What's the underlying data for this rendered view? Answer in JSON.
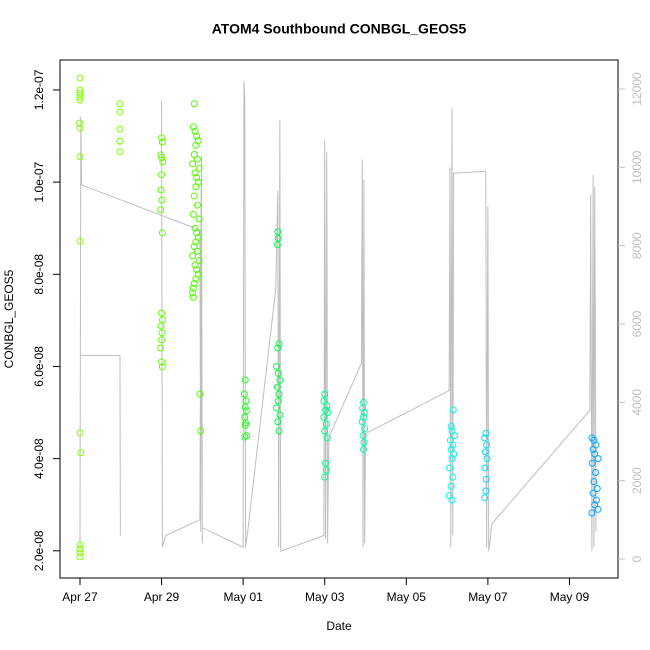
{
  "chart_data": {
    "type": "scatter",
    "title": "ATOM4 Southbound CONBGL_GEOS5",
    "xlabel": "Date",
    "ylabel": "CONBGL_GEOS5",
    "xlim": [
      116.51,
      130.19
    ],
    "xticks": [
      {
        "value": 117,
        "label": "Apr 27"
      },
      {
        "value": 119,
        "label": "Apr 29"
      },
      {
        "value": 121,
        "label": "May 01"
      },
      {
        "value": 123,
        "label": "May 03"
      },
      {
        "value": 125,
        "label": "May 05"
      },
      {
        "value": 127,
        "label": "May 07"
      },
      {
        "value": 129,
        "label": "May 09"
      }
    ],
    "ylim": [
      1.41e-08,
      1.265e-07
    ],
    "yticks": [
      {
        "value": 2e-08,
        "label": "2.0e-08"
      },
      {
        "value": 4e-08,
        "label": "4.0e-08"
      },
      {
        "value": 6e-08,
        "label": "6.0e-08"
      },
      {
        "value": 8e-08,
        "label": "8.0e-08"
      },
      {
        "value": 1e-07,
        "label": "1.0e-07"
      },
      {
        "value": 1.2e-07,
        "label": "1.2e-07"
      }
    ],
    "y2lim": [
      -485,
      12740
    ],
    "y2ticks": [
      0,
      2000,
      4000,
      6000,
      8000,
      10000,
      12000
    ],
    "series": [
      {
        "color": "#7fff00",
        "x": [
          117.0,
          117.0,
          117.0,
          117.0,
          117.0,
          116.99,
          117.0,
          117.0,
          117.0,
          117.0,
          117.02,
          117.0,
          117.0,
          117.0,
          117.0
        ],
        "values": [
          1.226e-07,
          1.2e-07,
          1.193e-07,
          1.185e-07,
          1.178e-07,
          1.128e-07,
          1.117e-07,
          1.055e-07,
          8.72e-08,
          4.56e-08,
          4.13e-08,
          2.13e-08,
          2.04e-08,
          1.96e-08,
          1.87e-08
        ]
      },
      {
        "color": "#74ff00",
        "x": [
          117.98,
          117.98,
          117.98,
          117.98,
          117.98
        ],
        "values": [
          1.17e-07,
          1.152e-07,
          1.115e-07,
          1.089e-07,
          1.066e-07
        ]
      },
      {
        "color": "#62ff00",
        "x": [
          119.0,
          119.02,
          118.98,
          119.0,
          119.03,
          119.0,
          118.99,
          119.01,
          118.98,
          119.02,
          119.0,
          119.02,
          118.99,
          119.01,
          119.0,
          118.98,
          119.0,
          119.02
        ],
        "values": [
          1.096e-07,
          1.087e-07,
          1.059e-07,
          1.053e-07,
          1.044e-07,
          1.016e-07,
          9.83e-08,
          9.61e-08,
          9.4e-08,
          8.9e-08,
          7.16e-08,
          7.01e-08,
          6.88e-08,
          6.73e-08,
          6.58e-08,
          6.4e-08,
          6.1e-08,
          5.99e-08
        ]
      },
      {
        "color": "#50ff00",
        "x": [
          119.8,
          119.78,
          119.82,
          119.86,
          119.9,
          119.84,
          119.8,
          119.88,
          119.76,
          119.92,
          119.82,
          119.86,
          119.9,
          119.84,
          119.8,
          119.88,
          119.78,
          119.92,
          119.82,
          119.86,
          119.9,
          119.84,
          119.8,
          119.88,
          119.76,
          119.92,
          119.82,
          119.86,
          119.9,
          119.84,
          119.8,
          119.78,
          119.76,
          119.78,
          119.94,
          119.96
        ],
        "values": [
          1.17e-07,
          1.12e-07,
          1.11e-07,
          1.1e-07,
          1.09e-07,
          1.08e-07,
          1.06e-07,
          1.05e-07,
          1.04e-07,
          1.03e-07,
          1.02e-07,
          1.01e-07,
          1e-07,
          9.9e-08,
          9.7e-08,
          9.5e-08,
          9.3e-08,
          9.2e-08,
          9e-08,
          8.9e-08,
          8.8e-08,
          8.7e-08,
          8.6e-08,
          8.5e-08,
          8.4e-08,
          8.3e-08,
          8.2e-08,
          8.1e-08,
          8e-08,
          7.9e-08,
          7.8e-08,
          7.7e-08,
          7.6e-08,
          7.5e-08,
          5.4e-08,
          4.6e-08
        ]
      },
      {
        "color": "#22ff22",
        "x": [
          121.05,
          121.03,
          121.07,
          121.05,
          121.08,
          121.04,
          121.06,
          121.05,
          121.08,
          121.04
        ],
        "values": [
          5.71e-08,
          5.4e-08,
          5.25e-08,
          5.12e-08,
          5.04e-08,
          4.9e-08,
          4.77e-08,
          4.72e-08,
          4.5e-08,
          4.47e-08
        ]
      },
      {
        "color": "#00ff44",
        "x": [
          121.85,
          121.86,
          121.84,
          121.88,
          121.85,
          121.82,
          121.86,
          121.9,
          121.84,
          121.88,
          121.86,
          121.82,
          121.9,
          121.85,
          121.88
        ],
        "values": [
          8.92e-08,
          8.78e-08,
          8.64e-08,
          6.49e-08,
          6.4e-08,
          6e-08,
          5.85e-08,
          5.7e-08,
          5.55e-08,
          5.4e-08,
          5.25e-08,
          5.1e-08,
          4.95e-08,
          4.8e-08,
          4.6e-08
        ]
      },
      {
        "color": "#00ff88",
        "x": [
          123.0,
          122.98,
          123.05,
          123.02,
          123.08,
          122.98,
          123.04,
          123.0,
          123.06,
          123.02,
          123.04,
          123.0
        ],
        "values": [
          5.4e-08,
          5.25e-08,
          5.15e-08,
          5.05e-08,
          5e-08,
          4.9e-08,
          4.75e-08,
          4.6e-08,
          4.45e-08,
          3.9e-08,
          3.75e-08,
          3.6e-08
        ]
      },
      {
        "color": "#00ffa8",
        "x": [
          123.95,
          123.93,
          123.97,
          123.95,
          123.92,
          123.98,
          123.94,
          123.96,
          123.95
        ],
        "values": [
          5.22e-08,
          5.1e-08,
          5e-08,
          4.9e-08,
          4.8e-08,
          4.65e-08,
          4.5e-08,
          4.35e-08,
          4.2e-08
        ]
      },
      {
        "color": "#00ffee",
        "x": [
          126.15,
          126.1,
          126.12,
          126.18,
          126.08,
          126.14,
          126.1,
          126.16,
          126.12,
          126.06,
          126.14,
          126.1,
          126.05,
          126.12
        ],
        "values": [
          5.06e-08,
          4.7e-08,
          4.6e-08,
          4.5e-08,
          4.4e-08,
          4.3e-08,
          4.2e-08,
          4.1e-08,
          4e-08,
          3.8e-08,
          3.6e-08,
          3.4e-08,
          3.2e-08,
          3.1e-08
        ]
      },
      {
        "color": "#00e0ff",
        "x": [
          126.95,
          126.92,
          126.97,
          126.94,
          126.98,
          126.93,
          126.96,
          126.95,
          126.92
        ],
        "values": [
          4.55e-08,
          4.45e-08,
          4.3e-08,
          4.15e-08,
          4e-08,
          3.8e-08,
          3.55e-08,
          3.3e-08,
          3.15e-08
        ]
      },
      {
        "color": "#00a8ff",
        "x": [
          129.55,
          129.6,
          129.65,
          129.58,
          129.62,
          129.7,
          129.56,
          129.64,
          129.6,
          129.68,
          129.58,
          129.66,
          129.62,
          129.7,
          129.55
        ],
        "values": [
          4.45e-08,
          4.4e-08,
          4.3e-08,
          4.2e-08,
          4.1e-08,
          4e-08,
          3.9e-08,
          3.7e-08,
          3.5e-08,
          3.35e-08,
          3.25e-08,
          3.1e-08,
          3e-08,
          2.9e-08,
          2.82e-08
        ]
      },
      {
        "type": "line",
        "axis": "y2",
        "color": "#bebebe",
        "x": [
          117.0,
          117.02,
          117.04,
          119.94,
          119.96,
          119.98,
          120.0,
          null,
          117.0,
          117.98,
          117.99,
          null,
          119.0,
          119.02,
          119.1,
          119.94,
          119.97,
          120.0,
          121.0,
          121.02,
          121.04,
          121.06,
          121.1,
          121.8,
          121.85,
          121.87,
          121.9,
          121.92,
          122.98,
          123.0,
          123.02,
          123.05,
          123.07,
          123.1,
          123.9,
          123.92,
          123.94,
          123.96,
          123.98,
          124.0,
          126.05,
          126.07,
          126.09,
          126.12,
          126.14,
          126.16,
          126.95,
          126.97,
          127.0,
          127.02,
          127.1,
          129.5,
          129.52,
          129.55,
          129.58,
          129.6,
          129.62,
          129.65
        ],
        "values": [
          300,
          11300,
          9550,
          8400,
          700,
          10300,
          400,
          null,
          5200,
          5200,
          600,
          null,
          11700,
          300,
          600,
          1000,
          9500,
          800,
          300,
          12200,
          11700,
          300,
          600,
          6900,
          9400,
          300,
          11200,
          200,
          600,
          10700,
          500,
          10400,
          400,
          3100,
          5000,
          10200,
          300,
          9700,
          400,
          3200,
          4300,
          10000,
          300,
          11500,
          600,
          9850,
          9900,
          300,
          9000,
          200,
          900,
          3800,
          9300,
          200,
          9800,
          300,
          9500,
          700
        ]
      }
    ]
  }
}
